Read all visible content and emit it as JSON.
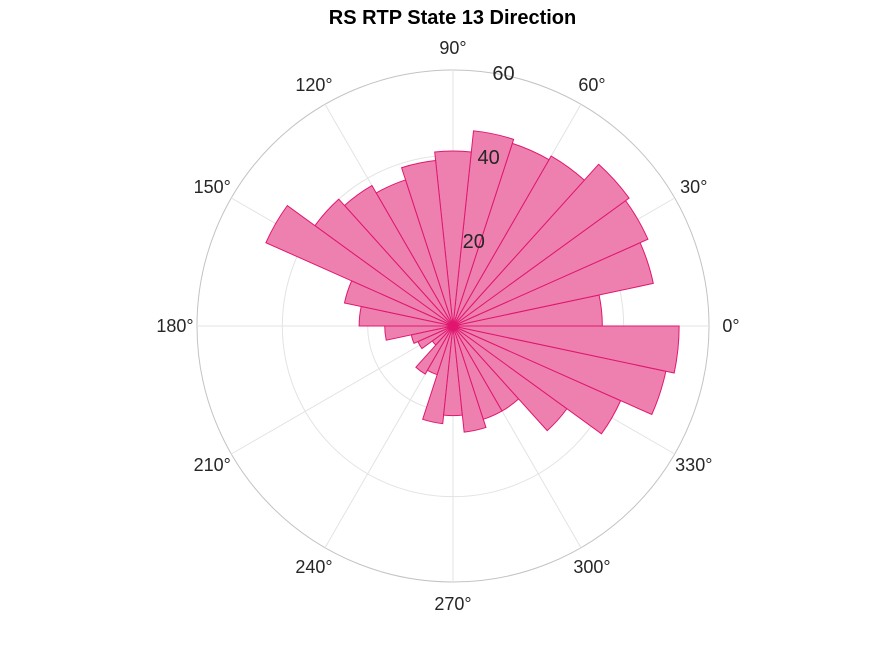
{
  "chart_data": {
    "type": "polar-histogram",
    "title": "RS  RTP State 13 Direction",
    "bin_width_deg": 12,
    "rlim": [
      0,
      60
    ],
    "r_ticks": [
      20,
      40,
      60
    ],
    "theta_ticks": [
      "0°",
      "30°",
      "60°",
      "90°",
      "120°",
      "150°",
      "180°",
      "210°",
      "240°",
      "270°",
      "300°",
      "330°"
    ],
    "theta_tick_values": [
      0,
      30,
      60,
      90,
      120,
      150,
      180,
      210,
      240,
      270,
      300,
      330
    ],
    "grid": true,
    "colors": {
      "face": "#ee80b0",
      "edge": "#e0176f",
      "grid": "#e3e3e3",
      "outer_ring": "#c3c3c3"
    },
    "bins_start_deg": [
      0,
      12,
      24,
      36,
      48,
      60,
      72,
      84,
      96,
      108,
      120,
      132,
      144,
      156,
      168,
      180,
      192,
      204,
      216,
      228,
      240,
      252,
      264,
      276,
      288,
      300,
      312,
      324,
      336,
      348
    ],
    "values": [
      35,
      48,
      50,
      51,
      46,
      45,
      46,
      41,
      39,
      36,
      38,
      40,
      48,
      26,
      22,
      16,
      10,
      9,
      6,
      13,
      12,
      23,
      21,
      25,
      23,
      23,
      33,
      43,
      51,
      53
    ]
  }
}
